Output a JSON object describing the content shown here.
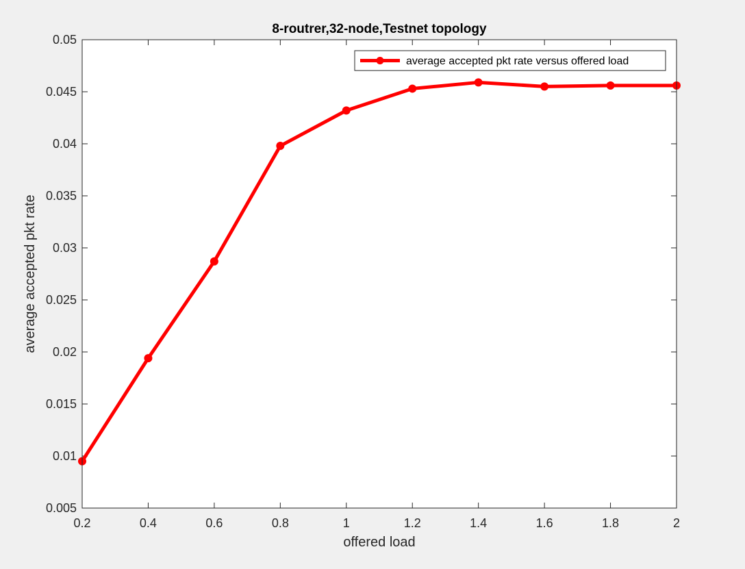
{
  "chart_data": {
    "type": "line",
    "title": "8-routrer,32-node,Testnet topology",
    "xlabel": "offered load",
    "ylabel": "average accepted pkt rate",
    "xlim": [
      0.2,
      2
    ],
    "ylim": [
      0.005,
      0.05
    ],
    "grid": false,
    "legend_position": "top-right",
    "x_ticks": [
      0.2,
      0.4,
      0.6,
      0.8,
      1,
      1.2,
      1.4,
      1.6,
      1.8,
      2
    ],
    "x_tick_labels": [
      "0.2",
      "0.4",
      "0.6",
      "0.8",
      "1",
      "1.2",
      "1.4",
      "1.6",
      "1.8",
      "2"
    ],
    "y_ticks": [
      0.005,
      0.01,
      0.015,
      0.02,
      0.025,
      0.03,
      0.035,
      0.04,
      0.045,
      0.05
    ],
    "y_tick_labels": [
      "0.005",
      "0.01",
      "0.015",
      "0.02",
      "0.025",
      "0.03",
      "0.035",
      "0.04",
      "0.045",
      "0.05"
    ],
    "series": [
      {
        "name": "average accepted pkt rate versus offered load",
        "color": "#ff0000",
        "marker": "circle",
        "x": [
          0.2,
          0.4,
          0.6,
          0.8,
          1.0,
          1.2,
          1.4,
          1.6,
          1.8,
          2.0
        ],
        "values": [
          0.0095,
          0.0194,
          0.0287,
          0.0398,
          0.0432,
          0.0453,
          0.0459,
          0.0455,
          0.0456,
          0.0456
        ]
      }
    ]
  }
}
